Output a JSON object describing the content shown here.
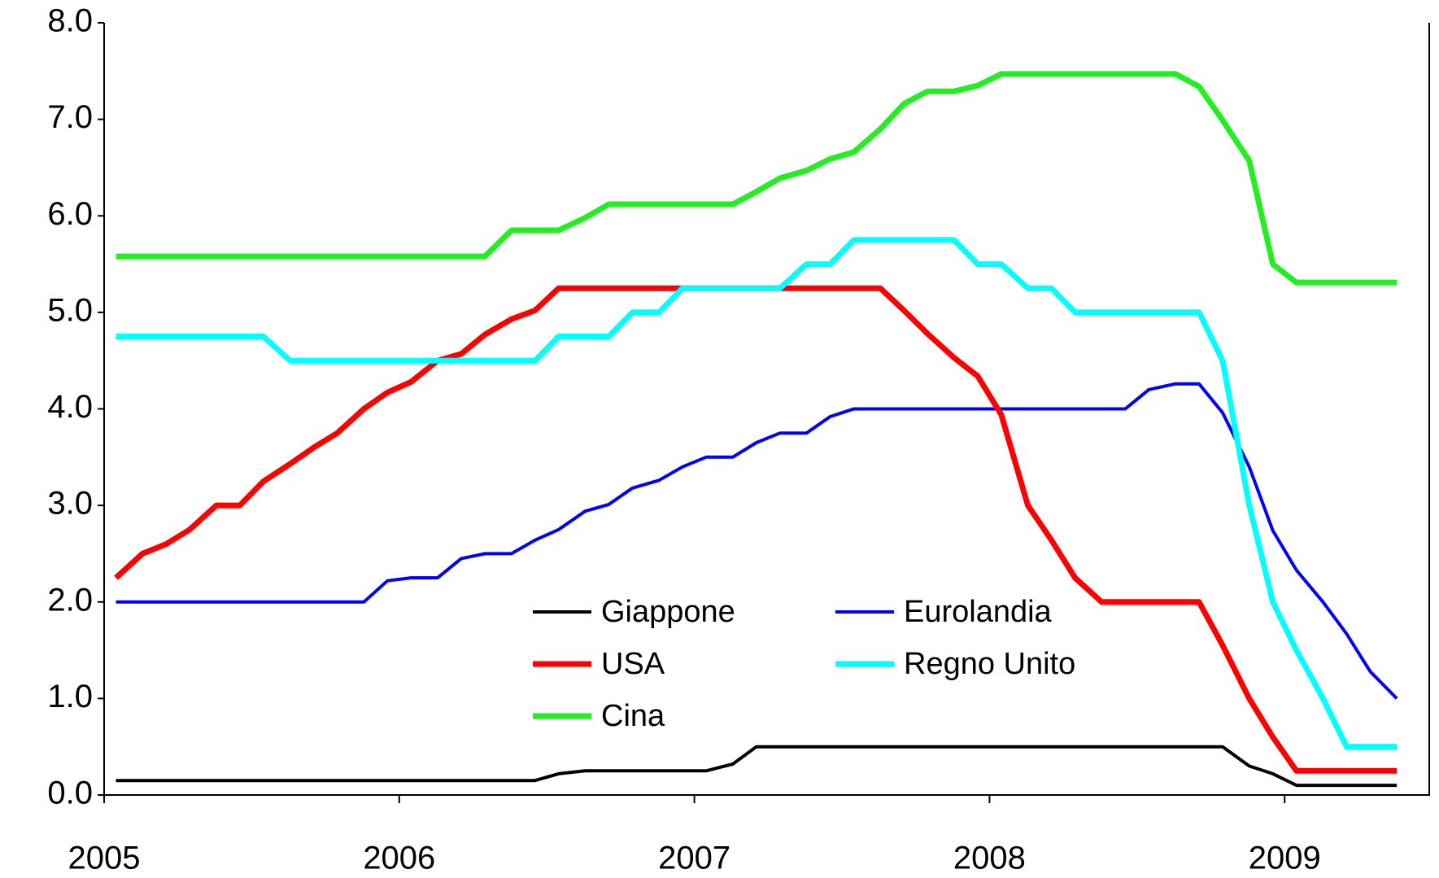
{
  "chart_data": {
    "type": "line",
    "x": [
      2005.04,
      2005.13,
      2005.21,
      2005.29,
      2005.38,
      2005.46,
      2005.54,
      2005.63,
      2005.71,
      2005.79,
      2005.88,
      2005.96,
      2006.04,
      2006.13,
      2006.21,
      2006.29,
      2006.38,
      2006.46,
      2006.54,
      2006.63,
      2006.71,
      2006.79,
      2006.88,
      2006.96,
      2007.04,
      2007.13,
      2007.21,
      2007.29,
      2007.38,
      2007.46,
      2007.54,
      2007.63,
      2007.71,
      2007.79,
      2007.88,
      2007.96,
      2008.04,
      2008.13,
      2008.21,
      2008.29,
      2008.38,
      2008.46,
      2008.54,
      2008.63,
      2008.71,
      2008.79,
      2008.88,
      2008.96,
      2009.04,
      2009.13,
      2009.21,
      2009.29,
      2009.38
    ],
    "series": [
      {
        "name": "Giappone",
        "color": "#000000",
        "linewidth": 4,
        "values": [
          0.15,
          0.15,
          0.15,
          0.15,
          0.15,
          0.15,
          0.15,
          0.15,
          0.15,
          0.15,
          0.15,
          0.15,
          0.15,
          0.15,
          0.15,
          0.15,
          0.15,
          0.15,
          0.22,
          0.25,
          0.25,
          0.25,
          0.25,
          0.25,
          0.25,
          0.32,
          0.5,
          0.5,
          0.5,
          0.5,
          0.5,
          0.5,
          0.5,
          0.5,
          0.5,
          0.5,
          0.5,
          0.5,
          0.5,
          0.5,
          0.5,
          0.5,
          0.5,
          0.5,
          0.5,
          0.5,
          0.3,
          0.22,
          0.1,
          0.1,
          0.1,
          0.1,
          0.1
        ]
      },
      {
        "name": "Eurolandia",
        "color": "#0000ff",
        "linewidth": 4,
        "values": [
          2.0,
          2.0,
          2.0,
          2.0,
          2.0,
          2.0,
          2.0,
          2.0,
          2.0,
          2.0,
          2.0,
          2.22,
          2.25,
          2.25,
          2.45,
          2.5,
          2.5,
          2.64,
          2.75,
          2.94,
          3.01,
          3.18,
          3.26,
          3.4,
          3.5,
          3.5,
          3.65,
          3.75,
          3.75,
          3.92,
          4.0,
          4.0,
          4.0,
          4.0,
          4.0,
          4.0,
          4.0,
          4.0,
          4.0,
          4.0,
          4.0,
          4.0,
          4.2,
          4.26,
          4.26,
          3.96,
          3.4,
          2.74,
          2.33,
          2.0,
          1.67,
          1.28,
          1.0
        ]
      },
      {
        "name": "USA",
        "color": "#ff0000",
        "linewidth": 7,
        "values": [
          2.25,
          2.5,
          2.6,
          2.75,
          3.0,
          3.0,
          3.25,
          3.43,
          3.6,
          3.75,
          4.0,
          4.17,
          4.28,
          4.5,
          4.57,
          4.77,
          4.93,
          5.02,
          5.25,
          5.25,
          5.25,
          5.25,
          5.25,
          5.25,
          5.25,
          5.25,
          5.25,
          5.25,
          5.25,
          5.25,
          5.25,
          5.25,
          5.02,
          4.78,
          4.53,
          4.34,
          3.94,
          3.0,
          2.64,
          2.25,
          2.0,
          2.0,
          2.0,
          2.0,
          2.0,
          1.55,
          1.0,
          0.6,
          0.25,
          0.25,
          0.25,
          0.25,
          0.25
        ]
      },
      {
        "name": "Regno Unito",
        "color": "#00ffff",
        "linewidth": 7,
        "values": [
          4.75,
          4.75,
          4.75,
          4.75,
          4.75,
          4.75,
          4.75,
          4.5,
          4.5,
          4.5,
          4.5,
          4.5,
          4.5,
          4.5,
          4.5,
          4.5,
          4.5,
          4.5,
          4.75,
          4.75,
          4.75,
          5.0,
          5.0,
          5.25,
          5.25,
          5.25,
          5.25,
          5.25,
          5.5,
          5.5,
          5.75,
          5.75,
          5.75,
          5.75,
          5.75,
          5.5,
          5.5,
          5.25,
          5.25,
          5.0,
          5.0,
          5.0,
          5.0,
          5.0,
          5.0,
          4.5,
          3.0,
          2.0,
          1.5,
          1.0,
          0.5,
          0.5,
          0.5
        ]
      },
      {
        "name": "Cina",
        "color": "#22ee22",
        "linewidth": 7,
        "values": [
          5.58,
          5.58,
          5.58,
          5.58,
          5.58,
          5.58,
          5.58,
          5.58,
          5.58,
          5.58,
          5.58,
          5.58,
          5.58,
          5.58,
          5.58,
          5.58,
          5.85,
          5.85,
          5.85,
          5.98,
          6.12,
          6.12,
          6.12,
          6.12,
          6.12,
          6.12,
          6.25,
          6.39,
          6.47,
          6.59,
          6.66,
          6.9,
          7.16,
          7.29,
          7.29,
          7.35,
          7.47,
          7.47,
          7.47,
          7.47,
          7.47,
          7.47,
          7.47,
          7.47,
          7.34,
          6.99,
          6.57,
          5.5,
          5.31,
          5.31,
          5.31,
          5.31,
          5.31
        ]
      }
    ],
    "xlim": [
      2005,
      2009.49
    ],
    "xticks": [
      2005,
      2006,
      2007,
      2008,
      2009
    ],
    "ylim": [
      0,
      8
    ],
    "yticks": [
      {
        "value": 0,
        "label": "0.0"
      },
      {
        "value": 1,
        "label": "1.0"
      },
      {
        "value": 2,
        "label": "2.0"
      },
      {
        "value": 3,
        "label": "3.0"
      },
      {
        "value": 4,
        "label": "4.0"
      },
      {
        "value": 5,
        "label": "5.0"
      },
      {
        "value": 6,
        "label": "6.0"
      },
      {
        "value": 7,
        "label": "7.0"
      },
      {
        "value": 8,
        "label": "8.0"
      }
    ],
    "grid": false,
    "legend": "lower center"
  }
}
